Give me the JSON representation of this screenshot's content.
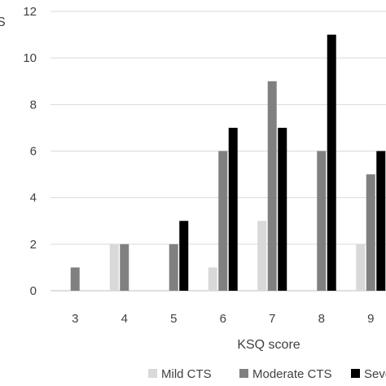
{
  "chart_data": {
    "type": "bar",
    "xlabel": "KSQ score",
    "ylabel": "S",
    "ylim": [
      0,
      12
    ],
    "yticks": [
      0,
      2,
      4,
      6,
      8,
      10,
      12
    ],
    "categories": [
      "3",
      "4",
      "5",
      "6",
      "7",
      "8",
      "9"
    ],
    "grid": true,
    "legend_position": "bottom",
    "series": [
      {
        "name": "Mild CTS",
        "color": "#d9d9d9",
        "values": [
          0,
          2,
          0,
          1,
          3,
          0,
          2
        ]
      },
      {
        "name": "Moderate CTS",
        "color": "#808080",
        "values": [
          1,
          2,
          2,
          6,
          9,
          6,
          5
        ]
      },
      {
        "name": "Seve",
        "color": "#000000",
        "values": [
          0,
          0,
          3,
          7,
          7,
          11,
          6
        ]
      }
    ]
  }
}
